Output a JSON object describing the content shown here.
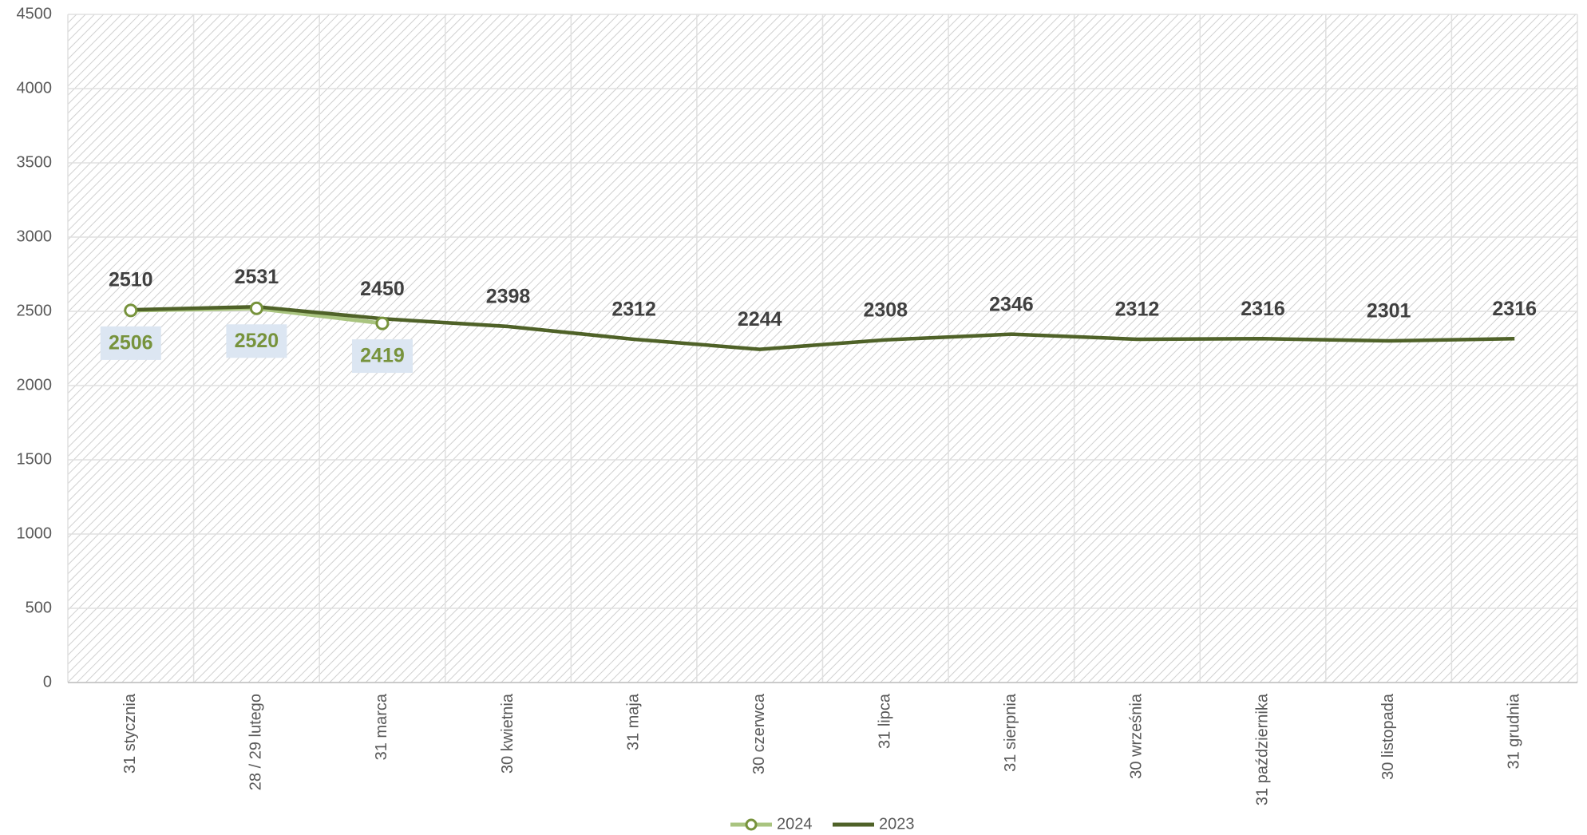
{
  "chart_data": {
    "type": "line",
    "categories": [
      "31 stycznia",
      "28 / 29 lutego",
      "31 marca",
      "30 kwietnia",
      "31 maja",
      "30 czerwca",
      "31 lipca",
      "31 sierpnia",
      "30 września",
      "31 października",
      "30 listopada",
      "31 grudnia"
    ],
    "series": [
      {
        "name": "2024",
        "color": "#a9c47f",
        "marker_color": "#77933c",
        "values": [
          2506,
          2520,
          2419,
          null,
          null,
          null,
          null,
          null,
          null,
          null,
          null,
          null
        ]
      },
      {
        "name": "2023",
        "color": "#4f6228",
        "values": [
          2510,
          2531,
          2450,
          2398,
          2312,
          2244,
          2308,
          2346,
          2312,
          2316,
          2301,
          2316
        ]
      }
    ],
    "ylim": [
      0,
      4500
    ],
    "yticks": [
      0,
      500,
      1000,
      1500,
      2000,
      2500,
      3000,
      3500,
      4000,
      4500
    ],
    "grid": true,
    "legend": "bottom"
  }
}
